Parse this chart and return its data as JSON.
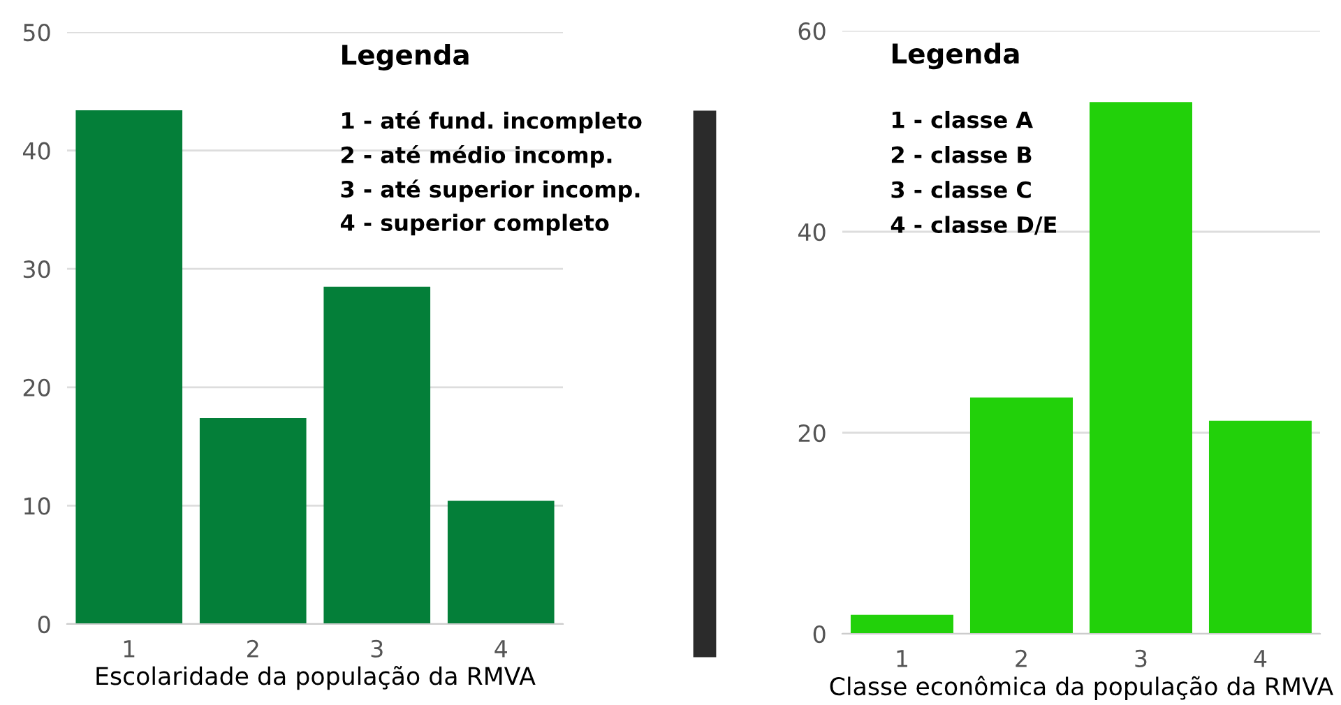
{
  "chart_data": [
    {
      "type": "bar",
      "categories": [
        "1",
        "2",
        "3",
        "4"
      ],
      "values": [
        43.4,
        17.4,
        28.5,
        10.4
      ],
      "color": "#047f39",
      "xlabel": "Escolaridade da população da RMVA",
      "ylim": [
        0,
        50
      ],
      "yticks": [
        0,
        10,
        20,
        30,
        40,
        50
      ],
      "grid": "y",
      "annotations": [
        "Legenda",
        "1 - até fund. incompleto",
        "2 - até médio incomp.",
        "3 - até superior incomp.",
        "4 - superior completo"
      ]
    },
    {
      "type": "bar",
      "categories": [
        "1",
        "2",
        "3",
        "4"
      ],
      "values": [
        1.9,
        23.5,
        52.9,
        21.2
      ],
      "color": "#22d10a",
      "xlabel": "Classe econômica da população da RMVA",
      "ylim": [
        0,
        60
      ],
      "yticks": [
        0,
        20,
        40,
        60
      ],
      "grid": "y",
      "annotations": [
        "Legenda",
        "1 - classe A",
        "2 - classe B",
        "3 - classe C",
        "4 - classe D/E"
      ]
    }
  ]
}
